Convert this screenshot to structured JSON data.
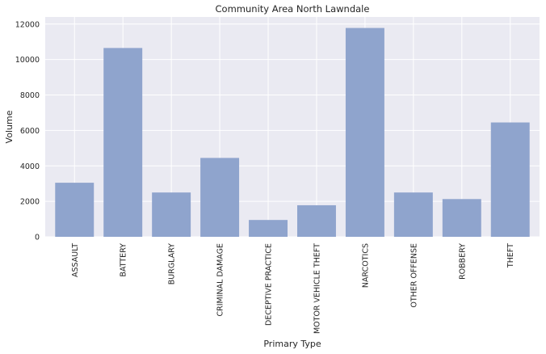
{
  "chart_data": {
    "type": "bar",
    "title": "Community Area North Lawndale",
    "xlabel": "Primary Type",
    "ylabel": "Volume",
    "categories": [
      "ASSAULT",
      "BATTERY",
      "BURGLARY",
      "CRIMINAL DAMAGE",
      "DECEPTIVE PRACTICE",
      "MOTOR VEHICLE THEFT",
      "NARCOTICS",
      "OTHER OFFENSE",
      "ROBBERY",
      "THEFT"
    ],
    "values": [
      3050,
      10650,
      2500,
      4450,
      950,
      1780,
      11780,
      2500,
      2130,
      6450
    ],
    "ylim": [
      0,
      12400
    ],
    "yticks": [
      0,
      2000,
      4000,
      6000,
      8000,
      10000,
      12000
    ],
    "ytick_labels": [
      "0",
      "2000",
      "4000",
      "6000",
      "8000",
      "10000",
      "12000"
    ],
    "grid": true,
    "colors": {
      "bar": "#8fa4cd",
      "background": "#eaeaf2",
      "grid": "#ffffff"
    }
  }
}
